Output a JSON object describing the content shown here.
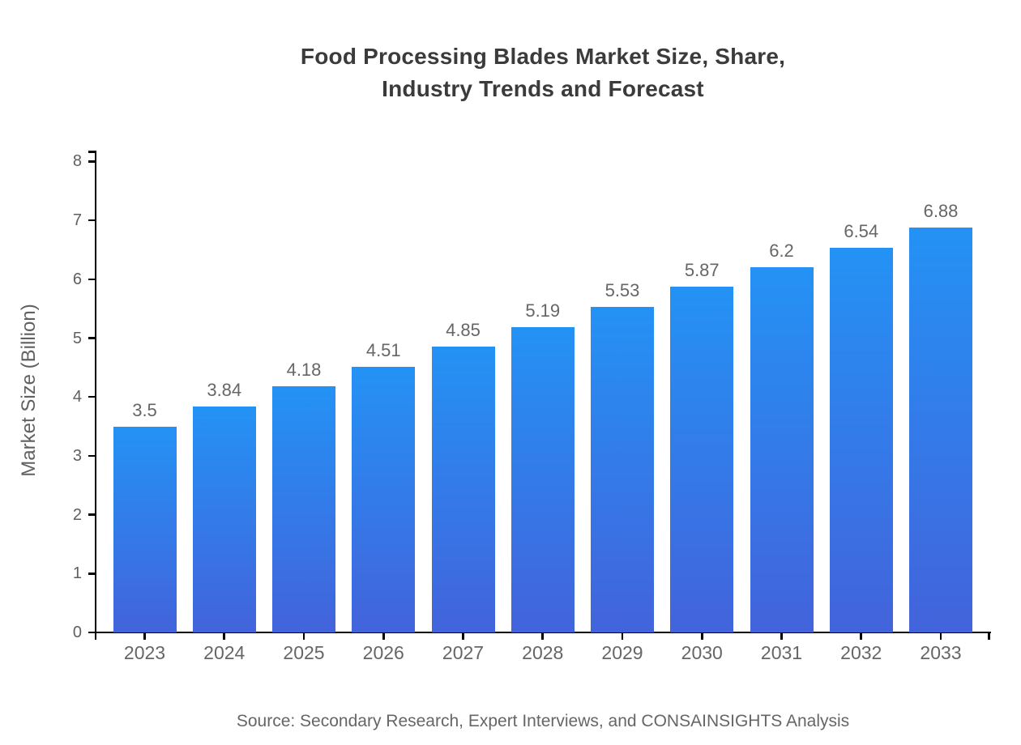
{
  "title": {
    "line1": "Food Processing Blades Market Size, Share,",
    "line2": "Industry Trends and Forecast"
  },
  "source": "Source: Secondary Research, Expert Interviews, and CONSAINSIGHTS Analysis",
  "chart_data": {
    "type": "bar",
    "title": "Food Processing Blades Market Size, Share, Industry Trends and Forecast",
    "categories": [
      "2023",
      "2024",
      "2025",
      "2026",
      "2027",
      "2028",
      "2029",
      "2030",
      "2031",
      "2032",
      "2033"
    ],
    "values": [
      3.5,
      3.84,
      4.18,
      4.51,
      4.85,
      5.19,
      5.53,
      5.87,
      6.2,
      6.54,
      6.88
    ],
    "value_labels": [
      "3.5",
      "3.84",
      "4.18",
      "4.51",
      "4.85",
      "5.19",
      "5.53",
      "5.87",
      "6.2",
      "6.54",
      "6.88"
    ],
    "xlabel": "",
    "ylabel": "Market Size (Billion)",
    "ylim": [
      0,
      8
    ],
    "yticks": [
      0,
      1,
      2,
      3,
      4,
      5,
      6,
      7,
      8
    ],
    "grid": false,
    "legend": false,
    "colors": {
      "bar_gradient_top": "#2492f5",
      "bar_gradient_bottom": "#4363db",
      "axis": "#000000",
      "tick_text": "#666666",
      "title_text": "#3b3b3b"
    }
  }
}
